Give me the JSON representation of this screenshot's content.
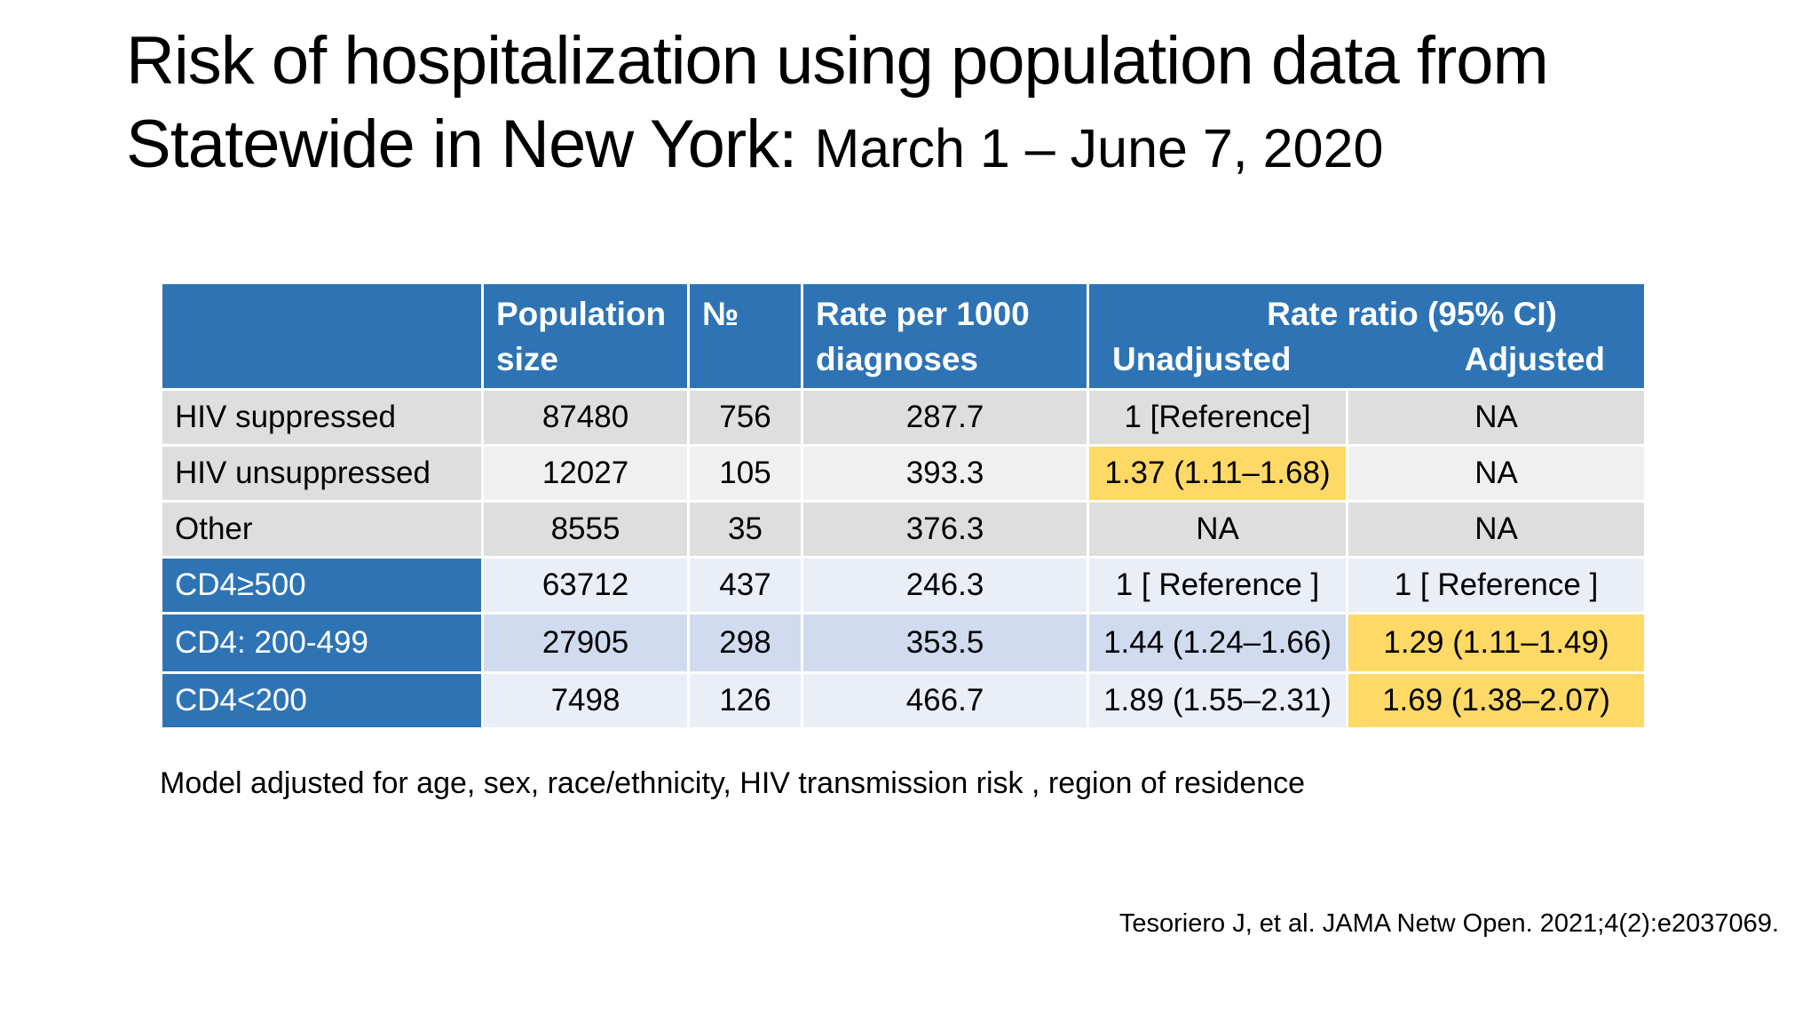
{
  "title": {
    "main": "Risk of hospitalization using population data from Statewide in New York:",
    "subtitle": "March 1 – June 7, 2020"
  },
  "table": {
    "headers": {
      "population": "Population size",
      "number": "№",
      "rate": "Rate per 1000 diagnoses",
      "rate_ratio": "Rate ratio (95% CI)",
      "unadjusted": "Unadjusted",
      "adjusted": "Adjusted"
    },
    "rows": [
      {
        "label": "HIV  suppressed",
        "population": "87480",
        "number": "756",
        "rate": "287.7",
        "unadjusted": "1 [Reference]",
        "adjusted": "NA"
      },
      {
        "label": "HIV unsuppressed",
        "population": "12027",
        "number": "105",
        "rate": "393.3",
        "unadjusted": "1.37 (1.11–1.68)",
        "adjusted": "NA"
      },
      {
        "label": "Other",
        "population": "8555",
        "number": "35",
        "rate": "376.3",
        "unadjusted": "NA",
        "adjusted": "NA"
      },
      {
        "label": "CD4≥500",
        "population": "63712",
        "number": "437",
        "rate": "246.3",
        "unadjusted": "1 [ Reference ]",
        "adjusted": "1 [ Reference ]"
      },
      {
        "label": "CD4: 200-499",
        "population": "27905",
        "number": "298",
        "rate": "353.5",
        "unadjusted": "1.44 (1.24–1.66)",
        "adjusted": "1.29 (1.11–1.49)"
      },
      {
        "label": "CD4<200",
        "population": "7498",
        "number": "126",
        "rate": "466.7",
        "unadjusted": "1.89 (1.55–2.31)",
        "adjusted": "1.69 (1.38–2.07)"
      }
    ]
  },
  "note": "Model adjusted for age, sex, race/ethnicity, HIV transmission risk ,  region of residence",
  "citation": "Tesoriero J, et al.  JAMA Netw Open. 2021;4(2):e2037069.",
  "colors": {
    "header_blue": "#2e74b5",
    "highlight_yellow": "#ffd966",
    "row_gray": "#dedede",
    "row_light_blue": "#e9eef7"
  }
}
